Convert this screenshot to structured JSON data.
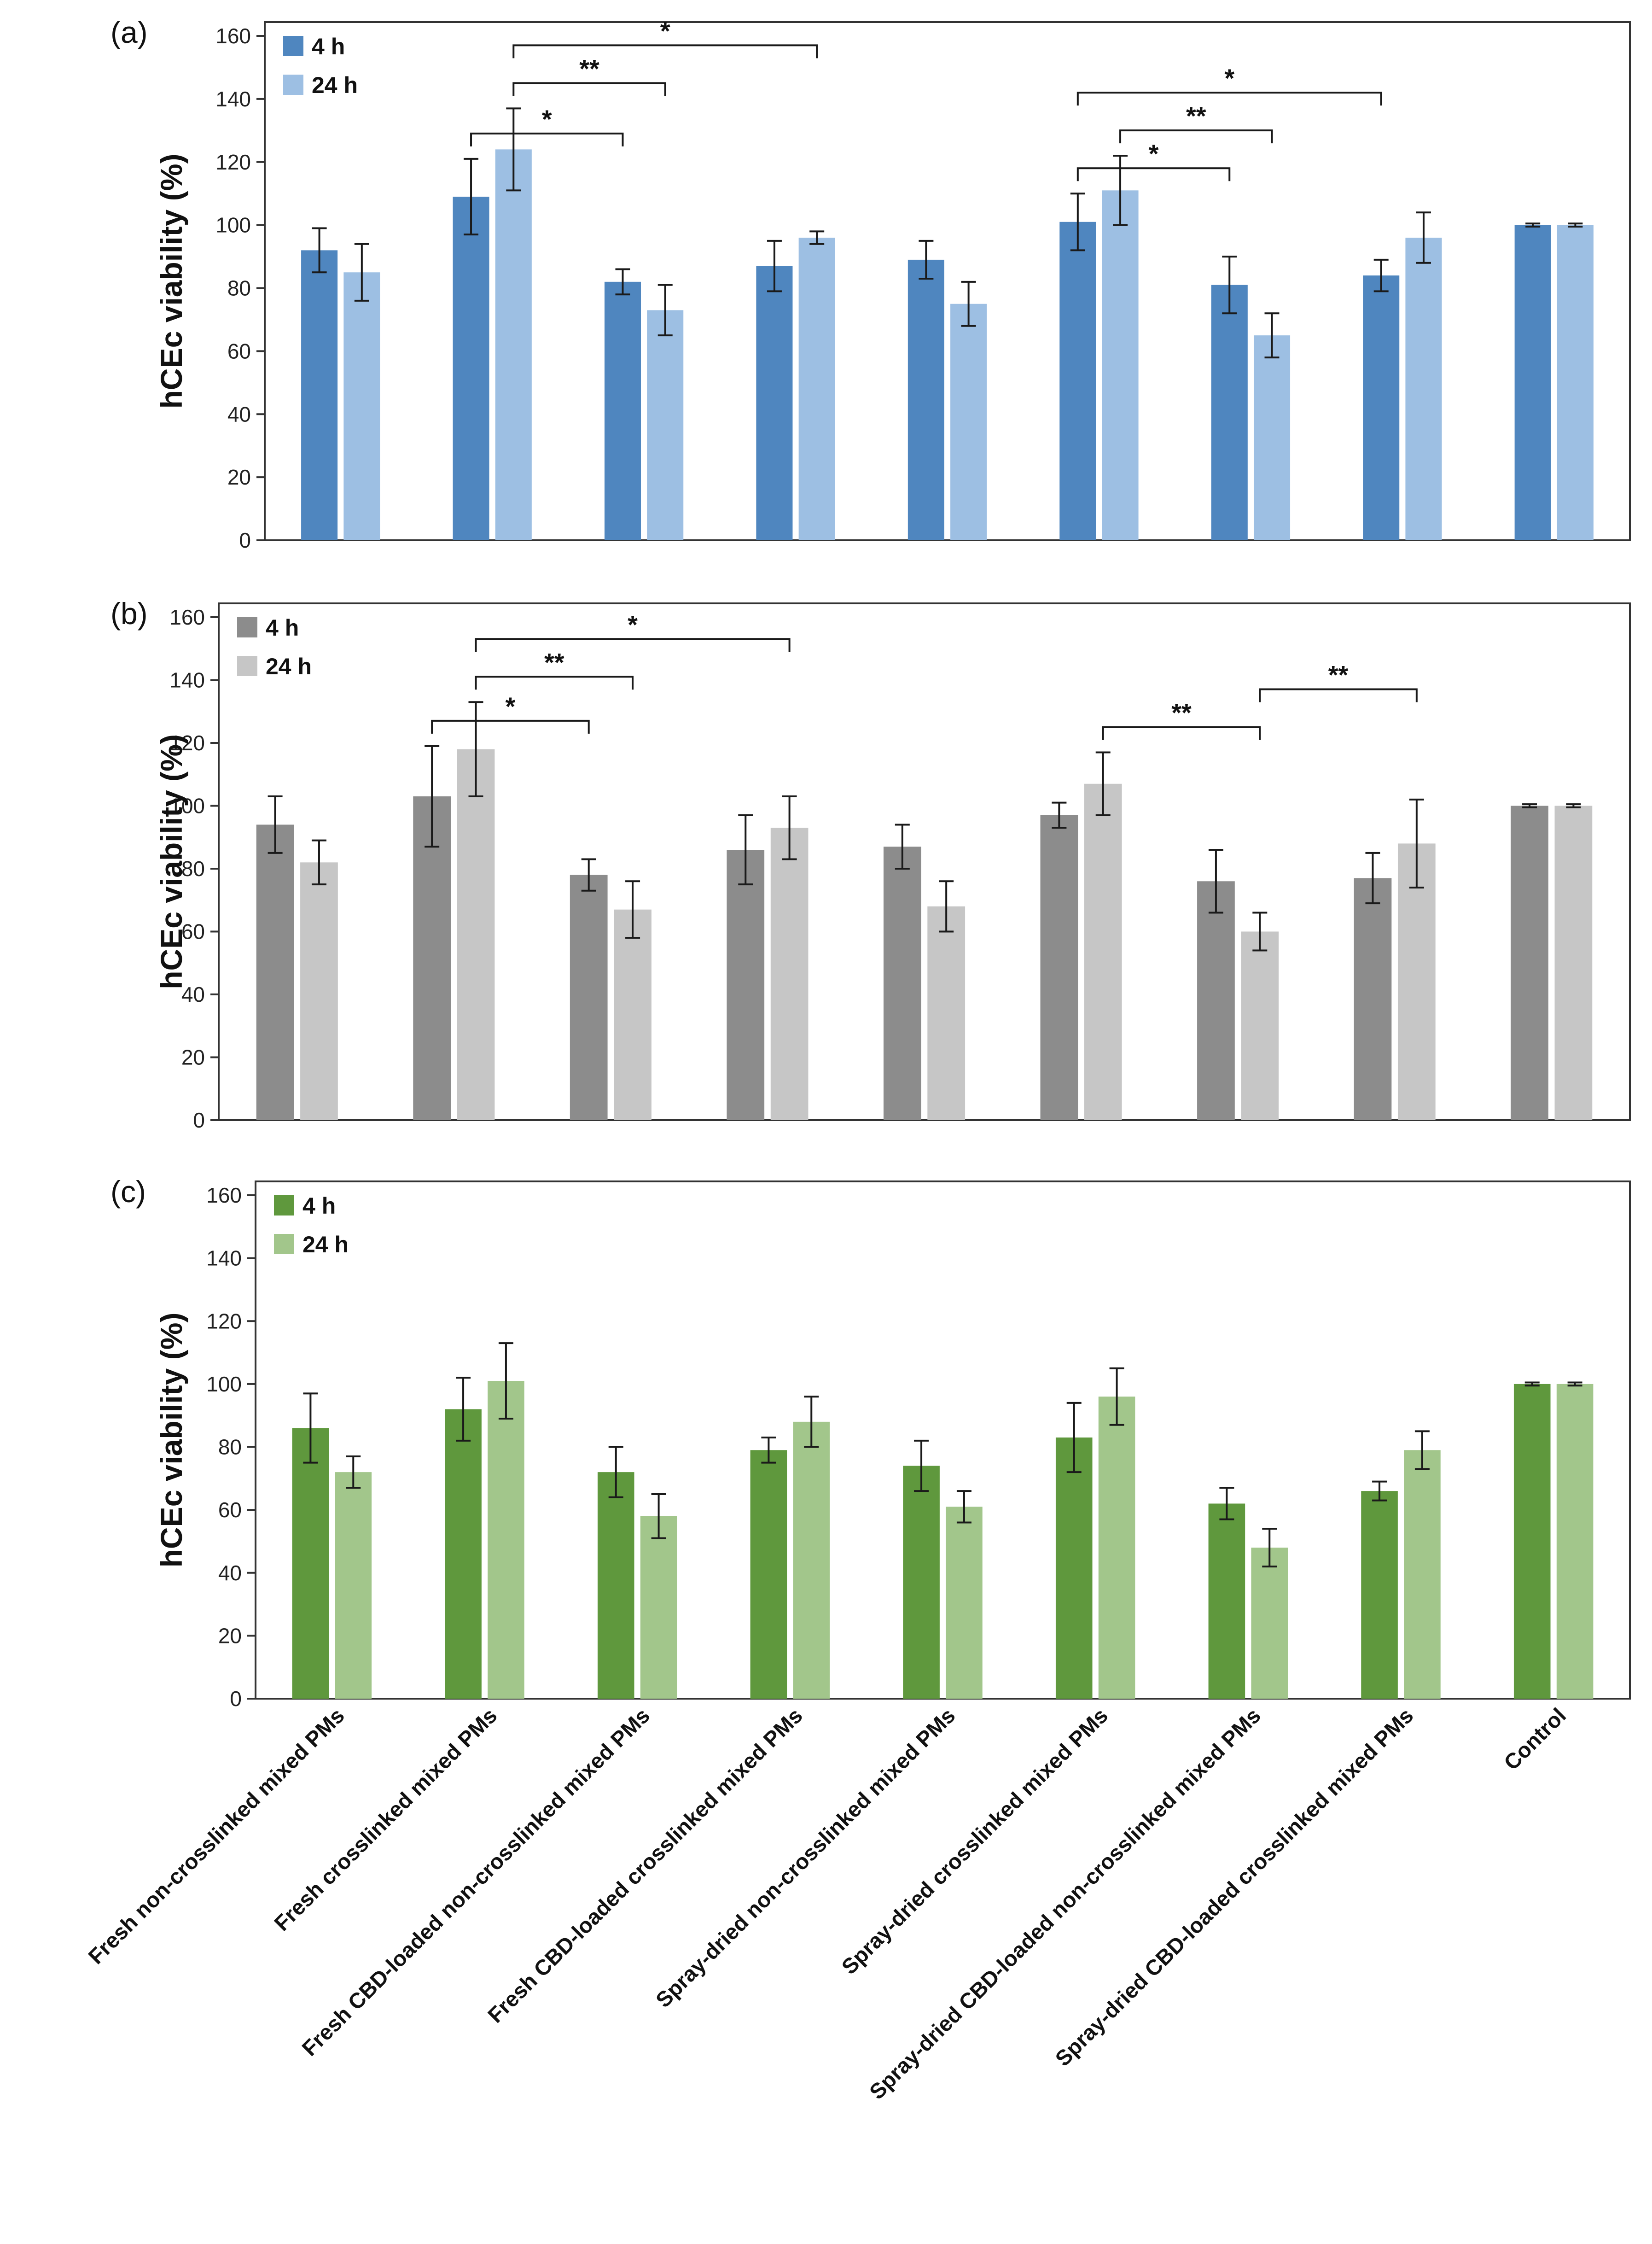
{
  "figure": {
    "categories": [
      "Fresh non-crosslinked mixed PMs",
      "Fresh crosslinked mixed PMs",
      "Fresh CBD-loaded non-crosslinked mixed PMs",
      "Fresh CBD-loaded crosslinked mixed PMs",
      "Spray-dried non-crosslinked mixed PMs",
      "Spray-dried crosslinked mixed PMs",
      "Spray-dried CBD-loaded non-crosslinked mixed PMs",
      "Spray-dried CBD-loaded crosslinked mixed PMs",
      "Control"
    ]
  },
  "chart_data": [
    {
      "type": "bar",
      "panel_label": "(a)",
      "ylabel": "hCEc viability (%)",
      "ylim": [
        0,
        160
      ],
      "yticks": [
        0,
        20,
        40,
        60,
        80,
        100,
        120,
        140,
        160
      ],
      "legend_position": "top-left",
      "series": [
        {
          "name": "4 h",
          "color": "#4f86bf",
          "values": [
            92,
            109,
            82,
            87,
            89,
            101,
            81,
            84,
            100
          ],
          "errors": [
            7,
            12,
            4,
            8,
            6,
            9,
            9,
            5,
            0.5
          ]
        },
        {
          "name": "24 h",
          "color": "#9dbfe3",
          "values": [
            85,
            124,
            73,
            96,
            75,
            111,
            65,
            96,
            100
          ],
          "errors": [
            9,
            13,
            8,
            2,
            7,
            11,
            7,
            8,
            0.5
          ]
        }
      ],
      "significance": [
        {
          "from": [
            1,
            0
          ],
          "to": [
            2,
            0
          ],
          "label": "*"
        },
        {
          "from": [
            1,
            1
          ],
          "to": [
            2,
            1
          ],
          "label": "**"
        },
        {
          "from": [
            1,
            1
          ],
          "to": [
            3,
            1
          ],
          "label": "*"
        },
        {
          "from": [
            5,
            0
          ],
          "to": [
            6,
            0
          ],
          "label": "*"
        },
        {
          "from": [
            5,
            1
          ],
          "to": [
            6,
            1
          ],
          "label": "**"
        },
        {
          "from": [
            5,
            0
          ],
          "to": [
            7,
            0
          ],
          "label": "*"
        }
      ]
    },
    {
      "type": "bar",
      "panel_label": "(b)",
      "ylabel": "hCEc viability (%)",
      "ylim": [
        0,
        160
      ],
      "yticks": [
        0,
        20,
        40,
        60,
        80,
        100,
        120,
        140,
        160
      ],
      "legend_position": "top-left",
      "series": [
        {
          "name": "4 h",
          "color": "#8c8c8c",
          "values": [
            94,
            103,
            78,
            86,
            87,
            97,
            76,
            77,
            100
          ],
          "errors": [
            9,
            16,
            5,
            11,
            7,
            4,
            10,
            8,
            0.5
          ]
        },
        {
          "name": "24 h",
          "color": "#c6c6c6",
          "values": [
            82,
            118,
            67,
            93,
            68,
            107,
            60,
            88,
            100
          ],
          "errors": [
            7,
            15,
            9,
            10,
            8,
            10,
            6,
            14,
            0.5
          ]
        }
      ],
      "significance": [
        {
          "from": [
            1,
            0
          ],
          "to": [
            2,
            0
          ],
          "label": "*"
        },
        {
          "from": [
            1,
            1
          ],
          "to": [
            2,
            1
          ],
          "label": "**"
        },
        {
          "from": [
            1,
            1
          ],
          "to": [
            3,
            1
          ],
          "label": "*"
        },
        {
          "from": [
            5,
            1
          ],
          "to": [
            6,
            1
          ],
          "label": "**"
        },
        {
          "from": [
            6,
            1
          ],
          "to": [
            7,
            1
          ],
          "label": "**"
        }
      ]
    },
    {
      "type": "bar",
      "panel_label": "(c)",
      "ylabel": "hCEc viability (%)",
      "ylim": [
        0,
        160
      ],
      "yticks": [
        0,
        20,
        40,
        60,
        80,
        100,
        120,
        140,
        160
      ],
      "legend_position": "top-left",
      "series": [
        {
          "name": "4 h",
          "color": "#5f983d",
          "values": [
            86,
            92,
            72,
            79,
            74,
            83,
            62,
            66,
            100
          ],
          "errors": [
            11,
            10,
            8,
            4,
            8,
            11,
            5,
            3,
            0.5
          ]
        },
        {
          "name": "24 h",
          "color": "#a2c68b",
          "values": [
            72,
            101,
            58,
            88,
            61,
            96,
            48,
            79,
            100
          ],
          "errors": [
            5,
            12,
            7,
            8,
            5,
            9,
            6,
            6,
            0.5
          ]
        }
      ],
      "significance": []
    }
  ]
}
